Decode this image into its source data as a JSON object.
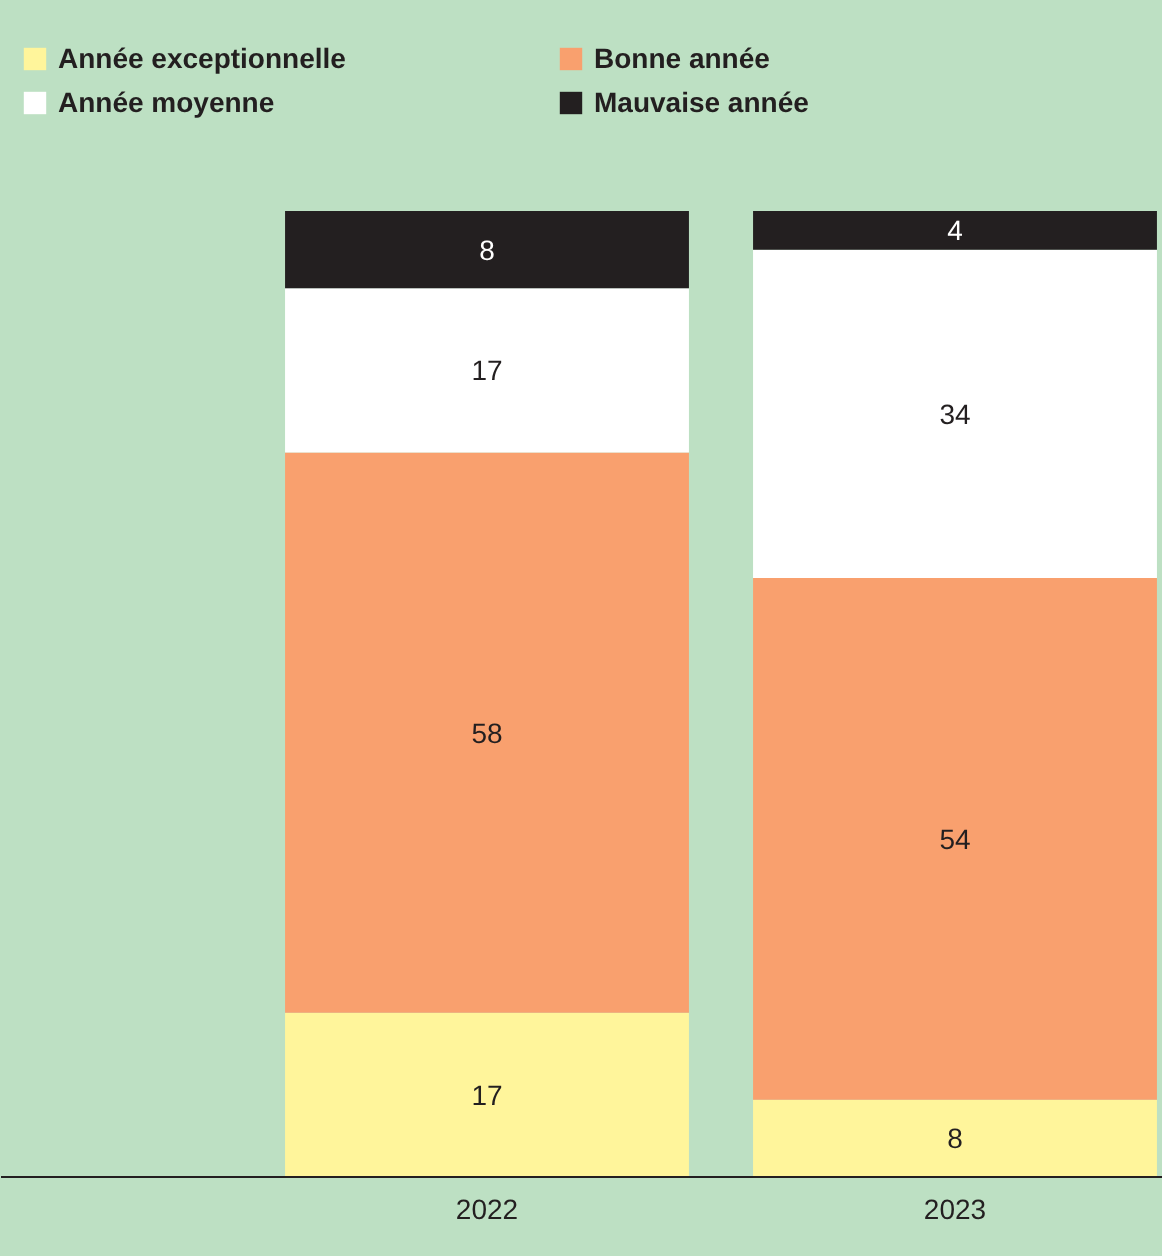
{
  "chart_data": {
    "type": "bar",
    "stacked": true,
    "categories": [
      "2022",
      "2023"
    ],
    "series": [
      {
        "name": "Année exceptionnelle",
        "color": "#fff59b",
        "values": [
          17,
          8
        ]
      },
      {
        "name": "Bonne année",
        "color": "#f9a06e",
        "values": [
          58,
          54
        ]
      },
      {
        "name": "Année moyenne",
        "color": "#ffffff",
        "values": [
          17,
          34
        ]
      },
      {
        "name": "Mauvaise année",
        "color": "#231f20",
        "values": [
          8,
          4
        ]
      }
    ],
    "data_labels": true,
    "legend": "top left"
  }
}
